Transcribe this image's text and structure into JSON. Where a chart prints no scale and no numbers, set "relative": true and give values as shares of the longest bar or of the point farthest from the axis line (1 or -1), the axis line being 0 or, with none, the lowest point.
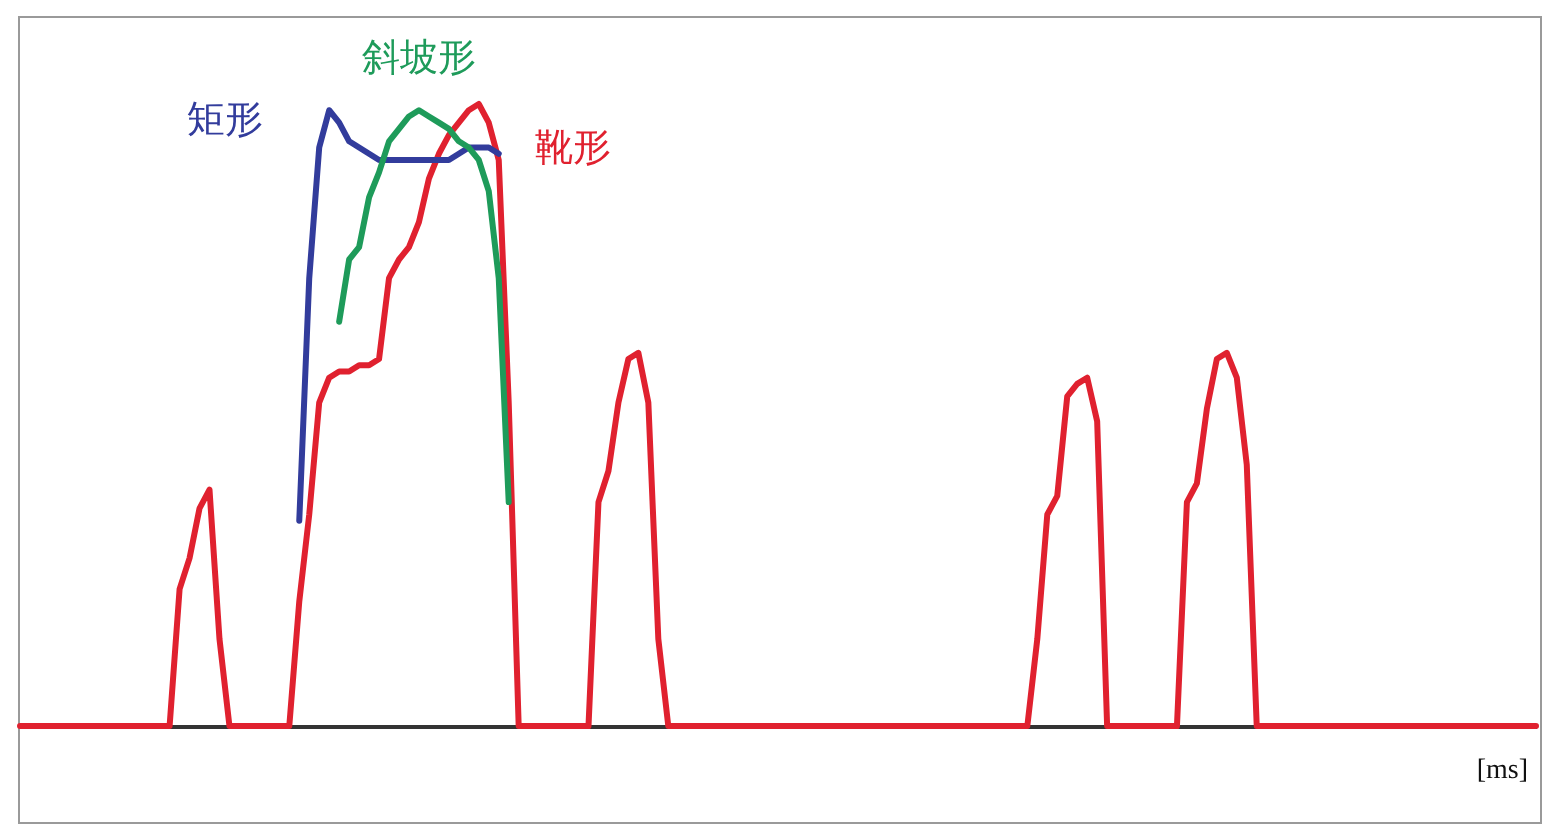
{
  "chart_data": {
    "type": "line",
    "relative": true,
    "xlabel": "[ms]",
    "categories": [
      null,
      null,
      null,
      null,
      null,
      null,
      null,
      null,
      null,
      null,
      null,
      null,
      null,
      null,
      null,
      null,
      null,
      null,
      null,
      null,
      null,
      null,
      null,
      null,
      null,
      null,
      null,
      null,
      null,
      null,
      null,
      null,
      null,
      null,
      null,
      null,
      null,
      null,
      null,
      null,
      null,
      null,
      null,
      null,
      null,
      null,
      null,
      null,
      null,
      null,
      null,
      null,
      null,
      null,
      null,
      null,
      null,
      null,
      null,
      null,
      null,
      null,
      null,
      null,
      null,
      null,
      null,
      null,
      null,
      null,
      null,
      null,
      null,
      null,
      null,
      null,
      null,
      null,
      null,
      null,
      null,
      null,
      null,
      null,
      null,
      null,
      null,
      null,
      null,
      null,
      null,
      null,
      null,
      null,
      null,
      null,
      null,
      null,
      null,
      null,
      null,
      null,
      null,
      null,
      null,
      null,
      null,
      null,
      null,
      null,
      null,
      null,
      null,
      null,
      null,
      null,
      null,
      null,
      null,
      null,
      null,
      null,
      null,
      null,
      null,
      null,
      null,
      null,
      null,
      null,
      null,
      null,
      null,
      null,
      null,
      null,
      null,
      null,
      null,
      null,
      null,
      null,
      null,
      null,
      null,
      null,
      null,
      null,
      null,
      null,
      null,
      null,
      null
    ],
    "series": [
      {
        "name": "靴形",
        "color": "#e0212f",
        "values": [
          0,
          0,
          0,
          0,
          0,
          0,
          0,
          0,
          0,
          0,
          0,
          0,
          0,
          0,
          0,
          0,
          0.22,
          0.27,
          0.35,
          0.38,
          0.14,
          0,
          0,
          0,
          0,
          0,
          0,
          0,
          0.2,
          0.34,
          0.52,
          0.56,
          0.57,
          0.57,
          0.58,
          0.58,
          0.59,
          0.72,
          0.75,
          0.77,
          0.81,
          0.88,
          0.92,
          0.95,
          0.97,
          0.99,
          1,
          0.97,
          0.91,
          0.52,
          0,
          0,
          0,
          0,
          0,
          0,
          0,
          0,
          0.36,
          0.41,
          0.52,
          0.59,
          0.6,
          0.52,
          0.14,
          0,
          0,
          0,
          0,
          0,
          0,
          0,
          0,
          0,
          0,
          0,
          0,
          0,
          0,
          0,
          0,
          0,
          0,
          0,
          0,
          0,
          0,
          0,
          0,
          0,
          0,
          0,
          0,
          0,
          0,
          0,
          0,
          0,
          0,
          0,
          0,
          0,
          0.14,
          0.34,
          0.37,
          0.53,
          0.55,
          0.56,
          0.49,
          0,
          0,
          0,
          0,
          0,
          0,
          0,
          0,
          0.36,
          0.39,
          0.51,
          0.59,
          0.6,
          0.56,
          0.42,
          0,
          0,
          0,
          0,
          0,
          0,
          0,
          0,
          0,
          0,
          0,
          0,
          0,
          0,
          0,
          0,
          0,
          0,
          0,
          0,
          0,
          0,
          0,
          0,
          0,
          0,
          0,
          0,
          0
        ]
      },
      {
        "name": "矩形",
        "color": "#323c9c",
        "values": [
          null,
          null,
          null,
          null,
          null,
          null,
          null,
          null,
          null,
          null,
          null,
          null,
          null,
          null,
          null,
          null,
          null,
          null,
          null,
          null,
          null,
          null,
          null,
          null,
          null,
          null,
          null,
          null,
          0.33,
          0.72,
          0.93,
          0.99,
          0.97,
          0.94,
          0.93,
          0.92,
          0.91,
          0.91,
          0.91,
          0.91,
          0.91,
          0.91,
          0.91,
          0.91,
          0.92,
          0.93,
          0.93,
          0.93,
          0.92,
          null,
          null,
          null,
          null,
          null,
          null,
          null,
          null,
          null,
          null,
          null,
          null,
          null,
          null,
          null,
          null,
          null,
          null,
          null,
          null,
          null,
          null,
          null,
          null,
          null,
          null,
          null,
          null,
          null,
          null,
          null,
          null,
          null,
          null,
          null,
          null,
          null,
          null,
          null,
          null,
          null,
          null,
          null,
          null,
          null,
          null,
          null,
          null,
          null,
          null,
          null,
          null,
          null,
          null,
          null,
          null,
          null,
          null,
          null,
          null,
          null,
          null,
          null,
          null,
          null,
          null,
          null,
          null,
          null,
          null,
          null,
          null,
          null,
          null,
          null,
          null,
          null,
          null,
          null,
          null,
          null,
          null,
          null,
          null,
          null,
          null,
          null,
          null,
          null,
          null,
          null,
          null,
          null,
          null,
          null,
          null,
          null,
          null,
          null,
          null,
          null,
          null,
          null,
          null
        ]
      },
      {
        "name": "斜坡形",
        "color": "#1e9b5a",
        "values": [
          null,
          null,
          null,
          null,
          null,
          null,
          null,
          null,
          null,
          null,
          null,
          null,
          null,
          null,
          null,
          null,
          null,
          null,
          null,
          null,
          null,
          null,
          null,
          null,
          null,
          null,
          null,
          null,
          null,
          null,
          null,
          null,
          0.65,
          0.75,
          0.77,
          0.85,
          0.89,
          0.94,
          0.96,
          0.98,
          0.99,
          0.98,
          0.97,
          0.96,
          0.94,
          0.93,
          0.91,
          0.86,
          0.72,
          0.36,
          null,
          null,
          null,
          null,
          null,
          null,
          null,
          null,
          null,
          null,
          null,
          null,
          null,
          null,
          null,
          null,
          null,
          null,
          null,
          null,
          null,
          null,
          null,
          null,
          null,
          null,
          null,
          null,
          null,
          null,
          null,
          null,
          null,
          null,
          null,
          null,
          null,
          null,
          null,
          null,
          null,
          null,
          null,
          null,
          null,
          null,
          null,
          null,
          null,
          null,
          null,
          null,
          null,
          null,
          null,
          null,
          null,
          null,
          null,
          null,
          null,
          null,
          null,
          null,
          null,
          null,
          null,
          null,
          null,
          null,
          null,
          null,
          null,
          null,
          null,
          null,
          null,
          null,
          null,
          null,
          null,
          null,
          null,
          null,
          null,
          null,
          null,
          null,
          null,
          null,
          null,
          null,
          null,
          null,
          null,
          null,
          null,
          null,
          null,
          null,
          null,
          null,
          null
        ]
      }
    ]
  }
}
